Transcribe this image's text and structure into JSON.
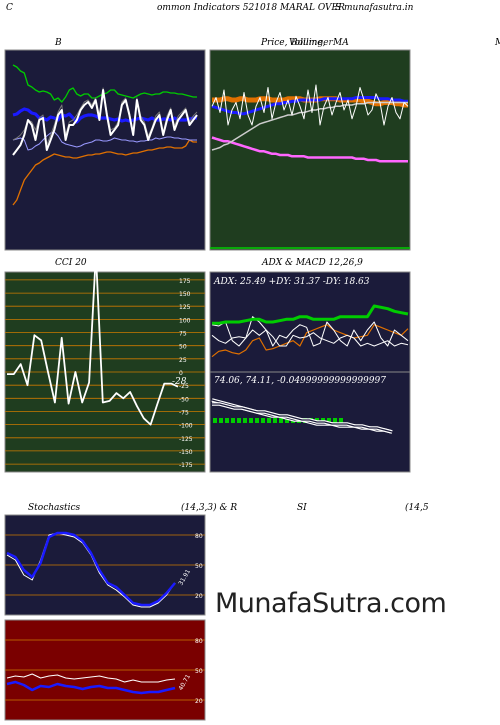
{
  "header": {
    "left_char": "C",
    "title": "ommon  Indicators 521018  MARAL  OVER",
    "right": "S munafasutra.in"
  },
  "panels": {
    "b": {
      "title": "B"
    },
    "price": {
      "title_a": "Price,",
      "title_b": "Volume,",
      "title_c": "MA",
      "title_overlay": "Bollinger"
    },
    "right_edge": {
      "label": "M"
    },
    "cci": {
      "title": "CCI 20",
      "value_label": "-28"
    },
    "adx": {
      "title": "ADX  & MACD 12,26,9",
      "readout": "ADX: 25.49  +DY: 31.37  -DY: 18.63",
      "macd_readout": "74.06,  74.11,  -0.04999999999999997"
    },
    "stoch": {
      "title_left": "Stochastics",
      "title_mid": "(14,3,3) & R",
      "title_si": "SI",
      "title_right": "(14,5",
      "value_label": "31.91"
    },
    "rsi": {
      "value_label": "40.71"
    }
  },
  "watermark": "MunafaSutra.com",
  "colors": {
    "navy_bg": "#1b1b3a",
    "green_bg": "#1f3d1f",
    "maroon_bg": "#7a0000",
    "grid_orange": "#cc7a00",
    "line_white": "#ffffff",
    "line_blue": "#1a1aff",
    "line_green": "#00cc00",
    "line_orange": "#e07000",
    "line_pink": "#ff66ff"
  },
  "chart_data": [
    {
      "id": "bollinger",
      "type": "line",
      "title": "B",
      "series": [
        {
          "values": [
            95,
            93,
            89,
            87,
            75,
            73,
            70,
            68,
            69,
            68,
            66,
            60,
            62,
            58,
            63,
            70,
            72,
            66,
            64,
            66,
            66,
            62,
            62,
            64,
            66,
            67,
            70,
            70,
            66,
            65,
            64,
            63,
            62,
            64,
            66,
            67,
            66,
            65,
            66,
            66,
            68,
            68,
            67,
            67,
            66,
            66,
            65,
            64,
            63,
            63
          ]
        },
        {
          "values": [
            45,
            46,
            49,
            51,
            50,
            47,
            46,
            42,
            42,
            40,
            43,
            42,
            40,
            45,
            44,
            46,
            42,
            38,
            42,
            44,
            45,
            45,
            44,
            42,
            42,
            42,
            41,
            40,
            41,
            39,
            40,
            39,
            40,
            41,
            42,
            41,
            40,
            42,
            40,
            40,
            41,
            41,
            40,
            42,
            40,
            40,
            40,
            41,
            42,
            42
          ]
        },
        {
          "values": [
            20,
            21,
            22,
            20,
            10,
            11,
            14,
            16,
            20,
            24,
            27,
            28,
            24,
            18,
            16,
            15,
            14,
            13,
            14,
            16,
            17,
            18,
            20,
            20,
            19,
            19,
            20,
            22,
            21,
            20,
            20,
            19,
            19,
            18,
            19,
            19,
            20,
            20,
            22,
            21,
            22,
            23,
            23,
            22,
            22,
            21,
            21,
            20,
            20,
            20
          ]
        },
        {
          "values": [
            -45,
            -40,
            -30,
            -20,
            -15,
            -10,
            -5,
            -3,
            0,
            2,
            4,
            6,
            5,
            4,
            3,
            3,
            2,
            2,
            3,
            4,
            5,
            5,
            6,
            6,
            7,
            8,
            8,
            7,
            6,
            6,
            5,
            6,
            7,
            7,
            8,
            9,
            10,
            10,
            11,
            12,
            12,
            13,
            13,
            12,
            12,
            12,
            14,
            20,
            18,
            18
          ]
        },
        {
          "values": [
            5,
            10,
            15,
            25,
            40,
            35,
            20,
            40,
            42,
            10,
            20,
            30,
            45,
            50,
            20,
            35,
            35,
            40,
            50,
            55,
            58,
            52,
            60,
            40,
            70,
            45,
            25,
            30,
            35,
            55,
            60,
            45,
            25,
            60,
            40,
            35,
            20,
            30,
            40,
            45,
            25,
            40,
            50,
            30,
            40,
            45,
            50,
            35,
            40,
            45
          ]
        },
        {
          "values": [
            20,
            22,
            25,
            30,
            40,
            38,
            30,
            42,
            45,
            15,
            25,
            35,
            48,
            55,
            25,
            38,
            40,
            45,
            52,
            58,
            60,
            55,
            62,
            45,
            72,
            48,
            30,
            32,
            38,
            58,
            62,
            48,
            28,
            62,
            44,
            38,
            24,
            32,
            44,
            48,
            28,
            44,
            52,
            34,
            44,
            48,
            52,
            38,
            44,
            48
          ]
        }
      ]
    },
    {
      "id": "price",
      "type": "line",
      "title": "Price,  Volume,  MA",
      "series": [
        {
          "values": [
            60,
            60,
            60,
            61,
            61,
            60,
            60,
            61,
            61,
            60,
            60,
            60,
            61,
            61,
            61,
            60,
            60,
            60,
            60,
            61,
            61,
            61,
            61,
            60,
            60,
            60,
            60,
            61,
            61,
            61,
            61,
            61,
            60,
            60,
            60,
            60,
            60,
            60,
            59,
            59,
            58,
            57,
            57,
            58,
            58,
            58,
            57,
            57,
            56,
            56
          ]
        },
        {
          "values": [
            55,
            54,
            53,
            52,
            51,
            50,
            50,
            49,
            49,
            50,
            51,
            52,
            53,
            54,
            55,
            56,
            57,
            57,
            58,
            58,
            59,
            59,
            60,
            60,
            60,
            60,
            60,
            60,
            61,
            61,
            61,
            61,
            61,
            61,
            61,
            61,
            62,
            62,
            62,
            62,
            62,
            62,
            61,
            61,
            61,
            60,
            60,
            60,
            59,
            59
          ]
        },
        {
          "values": [
            30,
            29,
            28,
            27,
            27,
            26,
            25,
            24,
            23,
            22,
            21,
            20,
            19,
            19,
            18,
            17,
            17,
            16,
            16,
            16,
            15,
            15,
            15,
            15,
            14,
            14,
            14,
            14,
            14,
            14,
            14,
            14,
            14,
            14,
            14,
            14,
            13,
            13,
            13,
            12,
            12,
            12,
            11,
            11,
            11,
            11,
            11,
            11,
            11,
            11
          ]
        },
        {
          "values": [
            20,
            21,
            22,
            24,
            25,
            27,
            29,
            31,
            33,
            35,
            37,
            39,
            41,
            42,
            43,
            44,
            45,
            46,
            47,
            48,
            48,
            49,
            50,
            50,
            51,
            52,
            52,
            53,
            53,
            54,
            54,
            55,
            55,
            56,
            56,
            56,
            57,
            57,
            57,
            58,
            58,
            58,
            58,
            58,
            58,
            58,
            58,
            58,
            58,
            58
          ]
        },
        {
          "values": [
            55,
            62,
            50,
            68,
            40,
            52,
            58,
            45,
            66,
            48,
            40,
            55,
            62,
            50,
            70,
            45,
            58,
            66,
            52,
            60,
            48,
            63,
            55,
            45,
            68,
            50,
            72,
            40,
            55,
            62,
            48,
            58,
            66,
            52,
            60,
            45,
            55,
            70,
            60,
            48,
            52,
            65,
            58,
            40,
            55,
            62,
            50,
            45,
            58,
            55
          ]
        }
      ]
    },
    {
      "id": "cci",
      "type": "line",
      "title": "CCI 20",
      "ylim": [
        -175,
        175
      ],
      "yticks": [
        175,
        150,
        125,
        100,
        75,
        50,
        25,
        0,
        -25,
        -50,
        -75,
        -100,
        -125,
        -150,
        -175
      ],
      "series": [
        {
          "values": [
            -4,
            -4,
            15,
            -25,
            70,
            60,
            0,
            -58,
            65,
            -60,
            0,
            -58,
            -20,
            225,
            -58,
            -55,
            -40,
            -50,
            -38,
            -65,
            -88,
            -100,
            -60,
            -22,
            -22,
            -28
          ]
        }
      ]
    },
    {
      "id": "adx",
      "type": "line",
      "title": "ADX & MACD 12,26,9",
      "series": [
        {
          "name": "+DY",
          "values": [
            10,
            14,
            15,
            13,
            12,
            15,
            22,
            24,
            15,
            16,
            18,
            20,
            22,
            18,
            28,
            30,
            32,
            34,
            30,
            28,
            26,
            24,
            25,
            26,
            34,
            32,
            30,
            28,
            26,
            31
          ]
        },
        {
          "values": [
            35,
            35,
            36,
            36,
            36,
            37,
            38,
            38,
            36,
            36,
            37,
            38,
            38,
            40,
            40,
            38,
            38,
            38,
            38,
            40,
            40,
            40,
            40,
            40,
            48,
            47,
            46,
            44,
            43,
            42
          ]
        },
        {
          "name": "-DY",
          "values": [
            26,
            22,
            20,
            24,
            25,
            24,
            30,
            26,
            30,
            25,
            18,
            18,
            26,
            24,
            25,
            28,
            24,
            22,
            20,
            24,
            26,
            24,
            18,
            20,
            18,
            20,
            22,
            18,
            20,
            19
          ]
        },
        {
          "values": [
            34,
            33,
            36,
            22,
            18,
            24,
            40,
            36,
            30,
            18,
            26,
            24,
            30,
            34,
            32,
            18,
            20,
            36,
            30,
            22,
            18,
            30,
            22,
            30,
            36,
            24,
            18,
            30,
            26,
            22
          ]
        }
      ]
    },
    {
      "id": "macd",
      "type": "line",
      "title": "74.06, 74.11, -0.04999999999999997",
      "series": [
        {
          "values": [
            90,
            89,
            88,
            87,
            86,
            85,
            84,
            83,
            82,
            82,
            81,
            80,
            80,
            79,
            78,
            78,
            78,
            77,
            77,
            77,
            76,
            76,
            75,
            75,
            74
          ]
        },
        {
          "values": [
            88,
            88,
            87,
            86,
            86,
            85,
            84,
            84,
            83,
            82,
            82,
            81,
            80,
            80,
            79,
            79,
            78,
            78,
            78,
            77,
            77,
            76,
            76,
            75,
            74
          ]
        }
      ]
    },
    {
      "id": "stochastics",
      "type": "line",
      "title": "Stochastics (14,3,3)",
      "ylim": [
        0,
        100
      ],
      "yticks": [
        80,
        50,
        20
      ],
      "series": [
        {
          "values": [
            60,
            55,
            40,
            35,
            55,
            80,
            82,
            80,
            78,
            72,
            60,
            42,
            30,
            25,
            18,
            10,
            8,
            8,
            12,
            20,
            32
          ]
        },
        {
          "values": [
            62,
            58,
            45,
            38,
            52,
            78,
            82,
            82,
            80,
            74,
            62,
            45,
            32,
            28,
            20,
            12,
            10,
            10,
            14,
            22,
            32
          ]
        }
      ]
    },
    {
      "id": "rsi",
      "type": "line",
      "title": "RSI (14)",
      "ylim": [
        0,
        100
      ],
      "yticks": [
        80,
        50,
        20
      ],
      "series": [
        {
          "values": [
            42,
            44,
            43,
            46,
            42,
            44,
            45,
            42,
            41,
            42,
            43,
            44,
            42,
            41,
            38,
            40,
            38,
            38,
            38,
            40,
            41
          ]
        },
        {
          "values": [
            36,
            38,
            35,
            30,
            34,
            33,
            36,
            34,
            33,
            31,
            33,
            34,
            32,
            32,
            30,
            28,
            27,
            28,
            28,
            30,
            32
          ]
        }
      ]
    }
  ]
}
